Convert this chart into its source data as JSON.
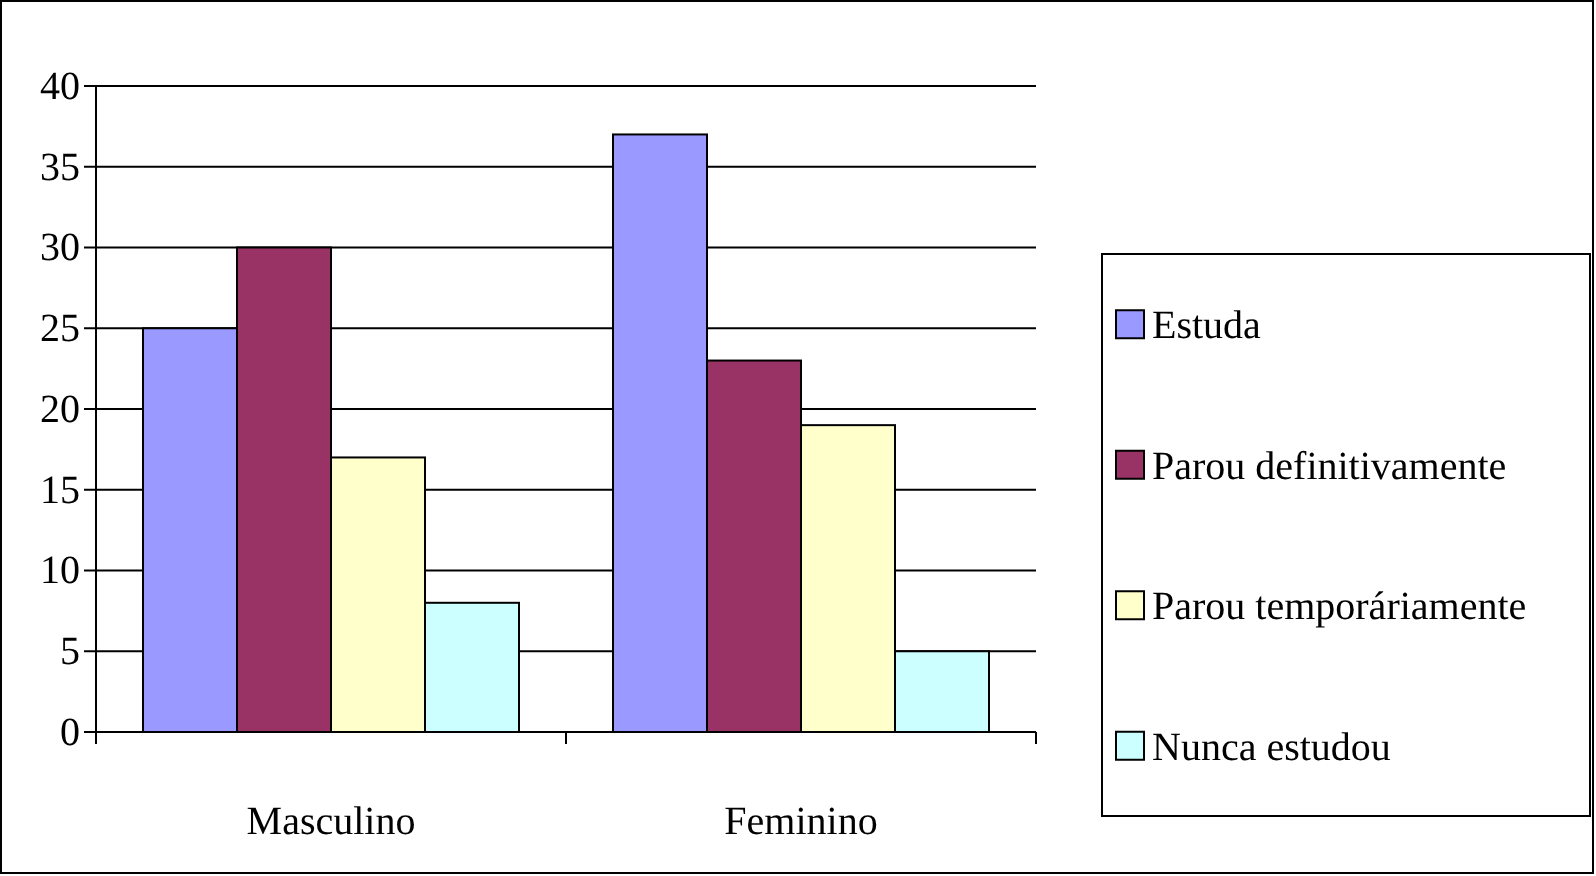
{
  "chart_data": {
    "type": "bar",
    "categories": [
      "Masculino",
      "Feminino"
    ],
    "series": [
      {
        "name": "Estuda",
        "color": "#9999ff",
        "values": [
          25,
          37
        ]
      },
      {
        "name": "Parou definitivamente",
        "color": "#993366",
        "values": [
          30,
          23
        ]
      },
      {
        "name": "Parou temporáriamente",
        "color": "#ffffcc",
        "values": [
          17,
          19
        ]
      },
      {
        "name": "Nunca estudou",
        "color": "#ccffff",
        "values": [
          8,
          5
        ]
      }
    ],
    "ylim": [
      0,
      40
    ],
    "yticks": [
      0,
      5,
      10,
      15,
      20,
      25,
      30,
      35,
      40
    ],
    "grid": "y",
    "legend": "right"
  }
}
